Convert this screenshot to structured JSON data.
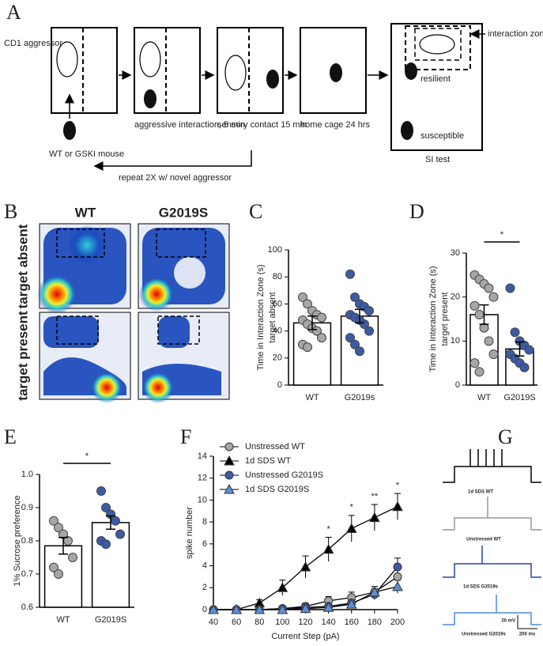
{
  "panel_labels": [
    "A",
    "B",
    "C",
    "D",
    "E",
    "F",
    "G"
  ],
  "diagram": {
    "aggressor": "CD1 aggressor",
    "mouse": "WT or GSKI mouse",
    "step1": "aggressive interaction, 5 min",
    "step2": "sensory contact 15 min",
    "step3": "home cage 24 hrs",
    "zone": "interaction zone",
    "resilient": "resilient",
    "susceptible": "susceptible",
    "test": "SI test",
    "repeat": "repeat 2X w/ novel aggressor"
  },
  "heatmaps": {
    "col_labels": [
      "WT",
      "G2019S"
    ],
    "row_labels": [
      "target absent",
      "target present"
    ]
  },
  "chart_data": [
    {
      "type": "bar",
      "ylabel": [
        "Time in Interaction  Zone (s)",
        "target absent"
      ],
      "categories": [
        "WT",
        "G2019s"
      ],
      "values": [
        46,
        51
      ],
      "errors": [
        5,
        5
      ],
      "point_colors": [
        "#a6a6a6",
        "#3b5ba5"
      ],
      "points": [
        [
          65,
          60,
          55,
          52,
          50,
          48,
          45,
          42,
          40,
          35,
          30,
          28
        ],
        [
          82,
          65,
          60,
          58,
          55,
          52,
          50,
          48,
          45,
          40,
          35,
          30,
          25
        ]
      ],
      "ylim": [
        0,
        100
      ],
      "yticks": [
        0,
        20,
        40,
        60,
        80,
        100
      ]
    },
    {
      "type": "bar",
      "ylabel": [
        "Time in Interaction  Zone (s)",
        "target present"
      ],
      "categories": [
        "WT",
        "G2019S"
      ],
      "values": [
        16,
        8.2
      ],
      "errors": [
        2.2,
        1.6
      ],
      "point_colors": [
        "#a6a6a6",
        "#3b5ba5"
      ],
      "points": [
        [
          25,
          24,
          23,
          22,
          20,
          18,
          16,
          13,
          10,
          7,
          5,
          3
        ],
        [
          22,
          12,
          10,
          9,
          8,
          7,
          6,
          5,
          4
        ]
      ],
      "ylim": [
        0,
        30
      ],
      "yticks": [
        0,
        10,
        20,
        30
      ],
      "significance": "*"
    },
    {
      "type": "bar",
      "ylabel": [
        "1% Sucrose preference"
      ],
      "categories": [
        "WT",
        "G2019S"
      ],
      "values": [
        0.785,
        0.855
      ],
      "errors": [
        0.025,
        0.02
      ],
      "point_colors": [
        "#a6a6a6",
        "#3b5ba5"
      ],
      "points": [
        [
          0.86,
          0.84,
          0.82,
          0.8,
          0.75,
          0.72,
          0.7
        ],
        [
          0.95,
          0.9,
          0.88,
          0.86,
          0.82,
          0.8,
          0.79
        ]
      ],
      "ylim": [
        0.6,
        1.0
      ],
      "yticks": [
        0.6,
        0.7,
        0.8,
        0.9,
        {
          "value": 1.0,
          "label": "1.0"
        }
      ],
      "significance": "*"
    },
    {
      "type": "line",
      "xlabel": "Current Step (pA)",
      "ylabel": "spike number",
      "x": [
        40,
        60,
        80,
        100,
        120,
        140,
        160,
        180,
        200
      ],
      "xlim": [
        40,
        200
      ],
      "xticks": [
        40,
        60,
        80,
        100,
        120,
        140,
        160,
        180,
        200
      ],
      "ylim": [
        0,
        14
      ],
      "yticks": [
        0,
        2,
        4,
        6,
        8,
        10,
        12,
        14
      ],
      "series": [
        {
          "name": "Unstressed WT",
          "color": "#a6a6a6",
          "marker": "circle",
          "values": [
            0,
            0,
            0,
            0.1,
            0.3,
            0.8,
            1.1,
            1.6,
            3.0
          ],
          "errors": [
            0,
            0,
            0,
            0.2,
            0.3,
            0.4,
            0.5,
            0.5,
            0.8
          ]
        },
        {
          "name": "1d SDS WT",
          "color": "#000000",
          "marker": "triangle",
          "values": [
            0,
            0,
            0.6,
            2,
            3.9,
            5.5,
            7.4,
            8.4,
            9.4
          ],
          "errors": [
            0,
            0,
            0.3,
            0.7,
            1.0,
            1.1,
            1.2,
            1.2,
            1.2
          ]
        },
        {
          "name": "Unstressed G2019S",
          "color": "#3b5ba5",
          "marker": "circle",
          "values": [
            0,
            0,
            0,
            0.1,
            0.2,
            0.3,
            0.6,
            1.4,
            3.9
          ],
          "errors": [
            0,
            0,
            0,
            0.1,
            0.2,
            0.3,
            0.4,
            0.5,
            0.8
          ]
        },
        {
          "name": "1d SDS G2019S",
          "color": "#5b8fd6",
          "marker": "triangle",
          "values": [
            0,
            0,
            0,
            0,
            0.1,
            0.2,
            0.5,
            1.6,
            2.1
          ],
          "errors": [
            0,
            0,
            0,
            0,
            0.1,
            0.2,
            0.3,
            0.5,
            0.6
          ]
        }
      ],
      "annotations": [
        {
          "x": 140,
          "text": "*"
        },
        {
          "x": 160,
          "text": "*"
        },
        {
          "x": 180,
          "text": "**"
        },
        {
          "x": 200,
          "text": "*"
        }
      ]
    }
  ],
  "traces": {
    "labels": [
      "1d SDS WT",
      "Unstressed WT",
      "1d SDS G2019s",
      "Unstressed G2019s"
    ],
    "scale": [
      "20 mV",
      "200 ms"
    ]
  }
}
